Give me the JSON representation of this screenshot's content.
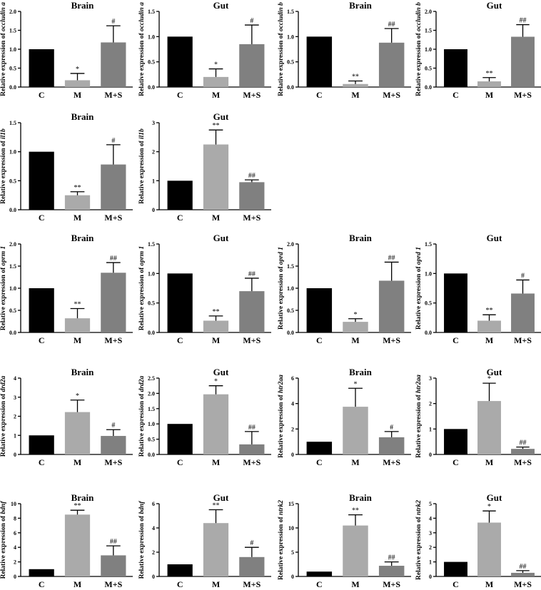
{
  "category_colors": {
    "C": "#000000",
    "M": "#aaaaaa",
    "M+S": "#808080"
  },
  "chart_data": [
    {
      "type": "bar",
      "title": "Brain",
      "ylabel": "Relative expression of ",
      "gene": "occludin a",
      "categories": [
        "C",
        "M",
        "M+S"
      ],
      "values": [
        1.0,
        0.18,
        1.18
      ],
      "errors": [
        0,
        0.18,
        0.44
      ],
      "sig": [
        "",
        "*",
        "#"
      ],
      "ylim": [
        0,
        2.0
      ],
      "yticks": [
        "0.0",
        "0.5",
        "1.0",
        "1.5",
        "2.0"
      ],
      "ytick_values": [
        0,
        0.5,
        1.0,
        1.5,
        2.0
      ]
    },
    {
      "type": "bar",
      "title": "Gut",
      "ylabel": "Relative expression of ",
      "gene": "occludin a",
      "categories": [
        "C",
        "M",
        "M+S"
      ],
      "values": [
        1.0,
        0.2,
        0.85
      ],
      "errors": [
        0,
        0.16,
        0.38
      ],
      "sig": [
        "",
        "*",
        "#"
      ],
      "ylim": [
        0,
        1.5
      ],
      "yticks": [
        "0.0",
        "0.5",
        "1.0",
        "1.5"
      ],
      "ytick_values": [
        0,
        0.5,
        1.0,
        1.5
      ]
    },
    {
      "type": "bar",
      "title": "Brain",
      "ylabel": "Relative expression of ",
      "gene": "occludin b",
      "categories": [
        "C",
        "M",
        "M+S"
      ],
      "values": [
        1.0,
        0.06,
        0.88
      ],
      "errors": [
        0,
        0.06,
        0.28
      ],
      "sig": [
        "",
        "**",
        "##"
      ],
      "ylim": [
        0,
        1.5
      ],
      "yticks": [
        "0.0",
        "0.5",
        "1.0",
        "1.5"
      ],
      "ytick_values": [
        0,
        0.5,
        1.0,
        1.5
      ]
    },
    {
      "type": "bar",
      "title": "Gut",
      "ylabel": "Relative expression of ",
      "gene": "occludin b",
      "categories": [
        "C",
        "M",
        "M+S"
      ],
      "values": [
        1.0,
        0.15,
        1.33
      ],
      "errors": [
        0,
        0.1,
        0.32
      ],
      "sig": [
        "",
        "**",
        "##"
      ],
      "ylim": [
        0,
        2.0
      ],
      "yticks": [
        "0.0",
        "0.5",
        "1.0",
        "1.5",
        "2.0"
      ],
      "ytick_values": [
        0,
        0.5,
        1.0,
        1.5,
        2.0
      ]
    },
    {
      "type": "bar",
      "title": "Brain",
      "ylabel": "Relative expression of ",
      "gene": "il1b",
      "categories": [
        "C",
        "M",
        "M+S"
      ],
      "values": [
        1.0,
        0.25,
        0.78
      ],
      "errors": [
        0,
        0.06,
        0.34
      ],
      "sig": [
        "",
        "**",
        "#"
      ],
      "ylim": [
        0,
        1.5
      ],
      "yticks": [
        "0.0",
        "0.5",
        "1.0",
        "1.5"
      ],
      "ytick_values": [
        0,
        0.5,
        1.0,
        1.5
      ]
    },
    {
      "type": "bar",
      "title": "Gut",
      "ylabel": "Relative expression of ",
      "gene": "il1b",
      "categories": [
        "C",
        "M",
        "M+S"
      ],
      "values": [
        1.0,
        2.25,
        0.95
      ],
      "errors": [
        0,
        0.5,
        0.08
      ],
      "sig": [
        "",
        "**",
        "##"
      ],
      "ylim": [
        0,
        3
      ],
      "yticks": [
        "0",
        "1",
        "2",
        "3"
      ],
      "ytick_values": [
        0,
        1,
        2,
        3
      ]
    },
    {
      "type": "bar",
      "title": "Brain",
      "ylabel": "Relative expression of ",
      "gene": "oprm 1",
      "categories": [
        "C",
        "M",
        "M+S"
      ],
      "values": [
        1.0,
        0.32,
        1.35
      ],
      "errors": [
        0,
        0.22,
        0.23
      ],
      "sig": [
        "",
        "**",
        "##"
      ],
      "ylim": [
        0,
        2.0
      ],
      "yticks": [
        "0.0",
        "0.5",
        "1.0",
        "1.5",
        "2.0"
      ],
      "ytick_values": [
        0,
        0.5,
        1.0,
        1.5,
        2.0
      ]
    },
    {
      "type": "bar",
      "title": "Gut",
      "ylabel": "Relative expression of ",
      "gene": "oprm 1",
      "categories": [
        "C",
        "M",
        "M+S"
      ],
      "values": [
        1.0,
        0.2,
        0.7
      ],
      "errors": [
        0,
        0.08,
        0.22
      ],
      "sig": [
        "",
        "**",
        "##"
      ],
      "ylim": [
        0,
        1.5
      ],
      "yticks": [
        "0.0",
        "0.5",
        "1.0",
        "1.5"
      ],
      "ytick_values": [
        0,
        0.5,
        1.0,
        1.5
      ]
    },
    {
      "type": "bar",
      "title": "Brain",
      "ylabel": "Relative expression of ",
      "gene": "oprd 1",
      "categories": [
        "C",
        "M",
        "M+S"
      ],
      "values": [
        1.0,
        0.24,
        1.17
      ],
      "errors": [
        0,
        0.07,
        0.42
      ],
      "sig": [
        "",
        "*",
        "##"
      ],
      "ylim": [
        0,
        2.0
      ],
      "yticks": [
        "0.0",
        "0.5",
        "1.0",
        "1.5",
        "2.0"
      ],
      "ytick_values": [
        0,
        0.5,
        1.0,
        1.5,
        2.0
      ]
    },
    {
      "type": "bar",
      "title": "Gut",
      "ylabel": "Relative expression of ",
      "gene": "oprd 1",
      "categories": [
        "C",
        "M",
        "M+S"
      ],
      "values": [
        1.0,
        0.2,
        0.66
      ],
      "errors": [
        0,
        0.1,
        0.23
      ],
      "sig": [
        "",
        "**",
        "#"
      ],
      "ylim": [
        0,
        1.5
      ],
      "yticks": [
        "0.0",
        "0.5",
        "1.0",
        "1.5"
      ],
      "ytick_values": [
        0,
        0.5,
        1.0,
        1.5
      ]
    },
    {
      "type": "bar",
      "title": "Brain",
      "ylabel": "Relative expression of ",
      "gene": "drd2a",
      "categories": [
        "C",
        "M",
        "M+S"
      ],
      "values": [
        1.0,
        2.22,
        0.97
      ],
      "errors": [
        0,
        0.63,
        0.33
      ],
      "sig": [
        "",
        "*",
        "#"
      ],
      "ylim": [
        0,
        4
      ],
      "yticks": [
        "0",
        "1",
        "2",
        "3",
        "4"
      ],
      "ytick_values": [
        0,
        1,
        2,
        3,
        4
      ]
    },
    {
      "type": "bar",
      "title": "Gut",
      "ylabel": "Relative expression of ",
      "gene": "drd2a",
      "categories": [
        "C",
        "M",
        "M+S"
      ],
      "values": [
        1.0,
        1.97,
        0.33
      ],
      "errors": [
        0,
        0.28,
        0.42
      ],
      "sig": [
        "",
        "*",
        "##"
      ],
      "ylim": [
        0,
        2.5
      ],
      "yticks": [
        "0.0",
        "0.5",
        "1.0",
        "1.5",
        "2.0",
        "2.5"
      ],
      "ytick_values": [
        0,
        0.5,
        1.0,
        1.5,
        2.0,
        2.5
      ]
    },
    {
      "type": "bar",
      "title": "Brain",
      "ylabel": "Relative expression of ",
      "gene": "htr2aa",
      "categories": [
        "C",
        "M",
        "M+S"
      ],
      "values": [
        1.0,
        3.75,
        1.35
      ],
      "errors": [
        0,
        1.45,
        0.45
      ],
      "sig": [
        "",
        "*",
        "#"
      ],
      "ylim": [
        0,
        6
      ],
      "yticks": [
        "0",
        "2",
        "4",
        "6"
      ],
      "ytick_values": [
        0,
        2,
        4,
        6
      ]
    },
    {
      "type": "bar",
      "title": "Gut",
      "ylabel": "Relative expression of ",
      "gene": "htr2aa",
      "categories": [
        "C",
        "M",
        "M+S"
      ],
      "values": [
        1.0,
        2.1,
        0.22
      ],
      "errors": [
        0,
        0.7,
        0.07
      ],
      "sig": [
        "",
        "*",
        "##"
      ],
      "ylim": [
        0,
        3
      ],
      "yticks": [
        "0",
        "1",
        "2",
        "3"
      ],
      "ytick_values": [
        0,
        1,
        2,
        3
      ]
    },
    {
      "type": "bar",
      "title": "Brain",
      "ylabel": "Relative expression of ",
      "gene": "bdnf",
      "categories": [
        "C",
        "M",
        "M+S"
      ],
      "values": [
        1.0,
        8.5,
        2.9
      ],
      "errors": [
        0,
        0.6,
        1.3
      ],
      "sig": [
        "",
        "**",
        "##"
      ],
      "ylim": [
        0,
        10
      ],
      "yticks": [
        "0",
        "2",
        "4",
        "6",
        "8",
        "10"
      ],
      "ytick_values": [
        0,
        2,
        4,
        6,
        8,
        10
      ]
    },
    {
      "type": "bar",
      "title": "Gut",
      "ylabel": "Relative expression of ",
      "gene": "bdnf",
      "categories": [
        "C",
        "M",
        "M+S"
      ],
      "values": [
        1.0,
        4.4,
        1.6
      ],
      "errors": [
        0,
        1.1,
        0.8
      ],
      "sig": [
        "",
        "**",
        "#"
      ],
      "ylim": [
        0,
        6
      ],
      "yticks": [
        "0",
        "2",
        "4",
        "6"
      ],
      "ytick_values": [
        0,
        2,
        4,
        6
      ]
    },
    {
      "type": "bar",
      "title": "Brain",
      "ylabel": "Relative expression of ",
      "gene": "ntrk2",
      "categories": [
        "C",
        "M",
        "M+S"
      ],
      "values": [
        1.0,
        10.5,
        2.2
      ],
      "errors": [
        0,
        2.2,
        0.8
      ],
      "sig": [
        "",
        "**",
        "##"
      ],
      "ylim": [
        0,
        15
      ],
      "yticks": [
        "0",
        "5",
        "10",
        "15"
      ],
      "ytick_values": [
        0,
        5,
        10,
        15
      ]
    },
    {
      "type": "bar",
      "title": "Gut",
      "ylabel": "Relative expression of ",
      "gene": "ntrk2",
      "categories": [
        "C",
        "M",
        "M+S"
      ],
      "values": [
        1.0,
        3.7,
        0.25
      ],
      "errors": [
        0,
        0.8,
        0.15
      ],
      "sig": [
        "",
        "*",
        "##"
      ],
      "ylim": [
        0,
        5
      ],
      "yticks": [
        "0",
        "1",
        "2",
        "3",
        "4",
        "5"
      ],
      "ytick_values": [
        0,
        1,
        2,
        3,
        4,
        5
      ]
    }
  ]
}
